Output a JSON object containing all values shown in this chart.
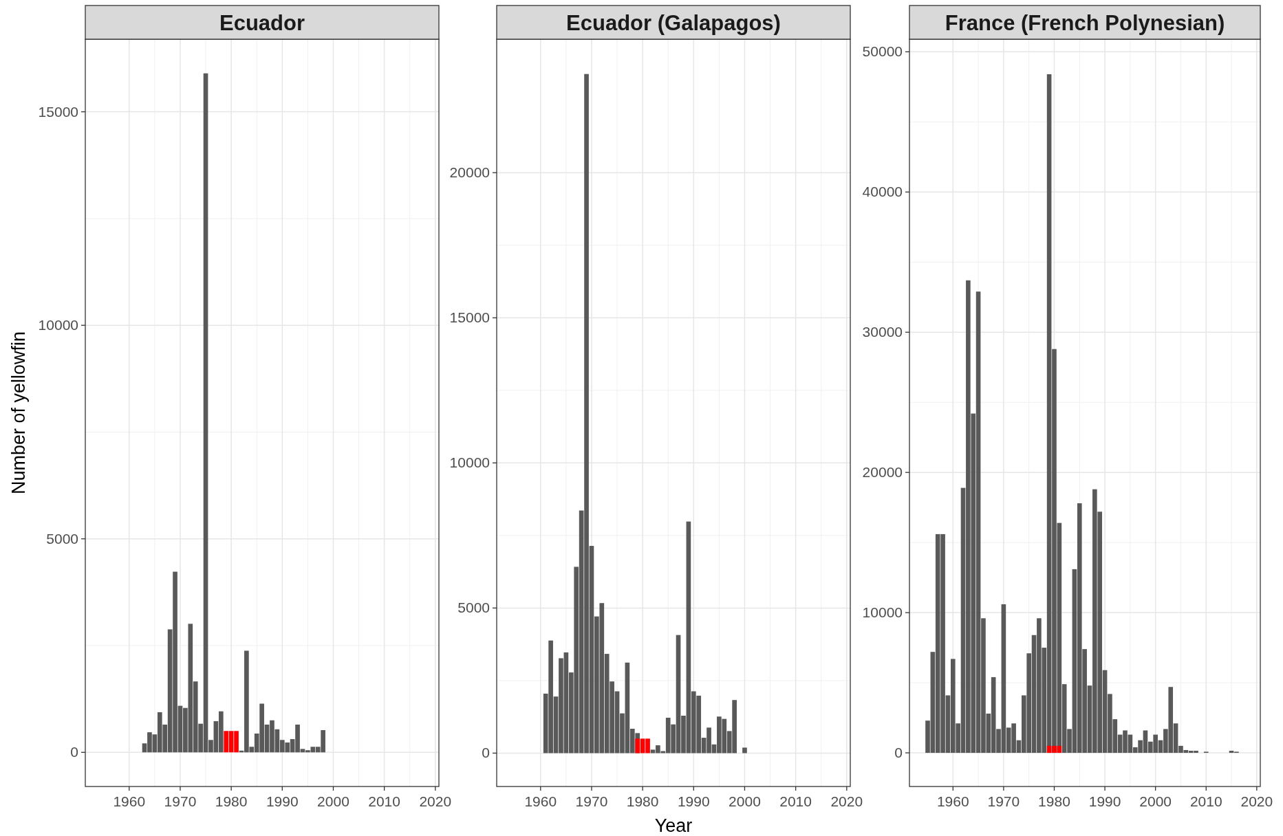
{
  "chart_data": [
    {
      "type": "bar",
      "title": "Ecuador",
      "ylabel": "Number of yellowfin",
      "xlim": [
        1951.4,
        2020.7
      ],
      "xticks": [
        1960,
        1970,
        1980,
        1990,
        2000,
        2010,
        2020
      ],
      "ylim": [
        -800,
        16700
      ],
      "yticks": [
        0,
        5000,
        10000,
        15000
      ],
      "grid": true,
      "series": [
        {
          "type": "bar",
          "color": "#595959",
          "x": [
            1963,
            1964,
            1965,
            1966,
            1967,
            1968,
            1969,
            1970,
            1971,
            1972,
            1973,
            1974,
            1975,
            1976,
            1977,
            1978,
            1982,
            1983,
            1984,
            1985,
            1986,
            1987,
            1988,
            1989,
            1990,
            1991,
            1992,
            1993,
            1994,
            1995,
            1996,
            1997,
            1998
          ],
          "values": [
            210,
            470,
            420,
            940,
            650,
            2880,
            4230,
            1090,
            1040,
            3010,
            1660,
            670,
            15900,
            290,
            730,
            960,
            40,
            2380,
            130,
            440,
            1140,
            650,
            750,
            540,
            290,
            230,
            310,
            650,
            80,
            50,
            130,
            130,
            520
          ]
        },
        {
          "type": "bar",
          "color": "#ff0000",
          "x": [
            1979,
            1980,
            1981
          ],
          "values": [
            500,
            500,
            500
          ]
        }
      ]
    },
    {
      "type": "bar",
      "title": "Ecuador (Galapagos)",
      "xlabel": "Year",
      "xlim": [
        1951.4,
        2020.7
      ],
      "xticks": [
        1960,
        1970,
        1980,
        1990,
        2000,
        2010,
        2020
      ],
      "ylim": [
        -1150,
        24600
      ],
      "yticks": [
        0,
        5000,
        10000,
        15000,
        20000
      ],
      "grid": true,
      "series": [
        {
          "type": "bar",
          "color": "#595959",
          "x": [
            1961,
            1962,
            1963,
            1964,
            1965,
            1966,
            1967,
            1968,
            1969,
            1970,
            1971,
            1972,
            1973,
            1974,
            1975,
            1976,
            1977,
            1978,
            1979,
            1982,
            1983,
            1984,
            1985,
            1986,
            1987,
            1988,
            1989,
            1990,
            1991,
            1992,
            1993,
            1994,
            1995,
            1996,
            1997,
            1998,
            2000
          ],
          "values": [
            2050,
            3880,
            1950,
            3270,
            3470,
            2780,
            6420,
            8360,
            23400,
            7140,
            4710,
            5170,
            3420,
            2470,
            2130,
            1370,
            3120,
            840,
            690,
            120,
            270,
            70,
            1220,
            990,
            4070,
            1290,
            7980,
            2130,
            1980,
            530,
            880,
            300,
            1260,
            1180,
            760,
            1830,
            190
          ]
        },
        {
          "type": "bar",
          "color": "#ff0000",
          "x": [
            1979,
            1980,
            1981
          ],
          "values": [
            500,
            500,
            500
          ]
        }
      ]
    },
    {
      "type": "bar",
      "title": "France (French Polynesian)",
      "xlim": [
        1951.4,
        2020.7
      ],
      "xticks": [
        1960,
        1970,
        1980,
        1990,
        2000,
        2010,
        2020
      ],
      "ylim": [
        -2400,
        50900
      ],
      "yticks": [
        0,
        10000,
        20000,
        30000,
        40000,
        50000
      ],
      "grid": true,
      "series": [
        {
          "type": "bar",
          "color": "#595959",
          "x": [
            1955,
            1956,
            1957,
            1958,
            1959,
            1960,
            1961,
            1962,
            1963,
            1964,
            1965,
            1966,
            1967,
            1968,
            1969,
            1970,
            1971,
            1972,
            1973,
            1974,
            1975,
            1976,
            1977,
            1978,
            1979,
            1980,
            1981,
            1982,
            1983,
            1984,
            1985,
            1986,
            1987,
            1988,
            1989,
            1990,
            1991,
            1992,
            1993,
            1994,
            1995,
            1996,
            1997,
            1998,
            1999,
            2000,
            2001,
            2002,
            2003,
            2004,
            2005,
            2006,
            2007,
            2008,
            2010,
            2015,
            2016
          ],
          "values": [
            2300,
            7200,
            15600,
            15600,
            4100,
            6700,
            2100,
            18900,
            33700,
            24200,
            32900,
            9600,
            2800,
            5400,
            1700,
            10600,
            1800,
            2100,
            900,
            4100,
            7100,
            8400,
            9600,
            7500,
            48400,
            28800,
            16400,
            4900,
            1700,
            13100,
            17800,
            7400,
            4800,
            18800,
            17200,
            5900,
            4200,
            2400,
            1300,
            1600,
            1300,
            400,
            900,
            1600,
            800,
            1300,
            900,
            1700,
            4700,
            2100,
            500,
            200,
            150,
            150,
            80,
            150,
            80
          ]
        },
        {
          "type": "bar",
          "color": "#ff0000",
          "x": [
            1979,
            1980,
            1981
          ],
          "values": [
            500,
            500,
            500
          ]
        }
      ]
    }
  ]
}
